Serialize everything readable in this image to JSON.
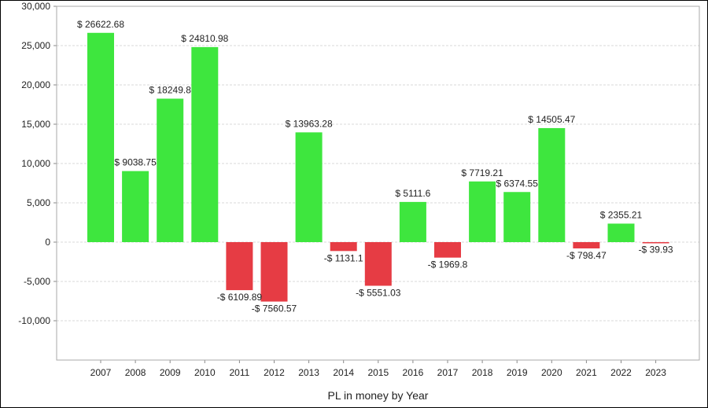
{
  "chart_data": {
    "type": "bar",
    "xlabel": "PL in money by Year",
    "ylabel": "",
    "ylim": [
      -15000,
      30000
    ],
    "yticks": [
      30000,
      25000,
      20000,
      15000,
      10000,
      5000,
      0,
      -5000,
      -10000
    ],
    "ytick_labels": [
      "30,000",
      "25,000",
      "20,000",
      "15,000",
      "10,000",
      "5,000",
      "0",
      "-5,000",
      "-10,000"
    ],
    "grid": true,
    "categories": [
      "2007",
      "2008",
      "2009",
      "2010",
      "2011",
      "2012",
      "2013",
      "2014",
      "2015",
      "2016",
      "2017",
      "2018",
      "2019",
      "2020",
      "2021",
      "2022",
      "2023"
    ],
    "values": [
      26622.68,
      9038.75,
      18249.8,
      24810.98,
      -6109.89,
      -7560.57,
      13963.28,
      -1131.1,
      -5551.03,
      5111.6,
      -1969.8,
      7719.21,
      6374.55,
      14505.47,
      -798.47,
      2355.21,
      -39.93
    ],
    "data_labels": [
      "$ 26622.68",
      "$ 9038.75",
      "$ 18249.8",
      "$ 24810.98",
      "-$ 6109.89",
      "-$ 7560.57",
      "$ 13963.28",
      "-$ 1131.1",
      "-$ 5551.03",
      "$ 5111.6",
      "-$ 1969.8",
      "$ 7719.21",
      "$ 6374.55",
      "$ 14505.47",
      "-$ 798.47",
      "$ 2355.21",
      "-$ 39.93"
    ],
    "colors": {
      "positive": "#3ee63e",
      "negative": "#e63c44",
      "grid": "#d8d8d8",
      "plot_border": "#a8a8a8"
    }
  }
}
